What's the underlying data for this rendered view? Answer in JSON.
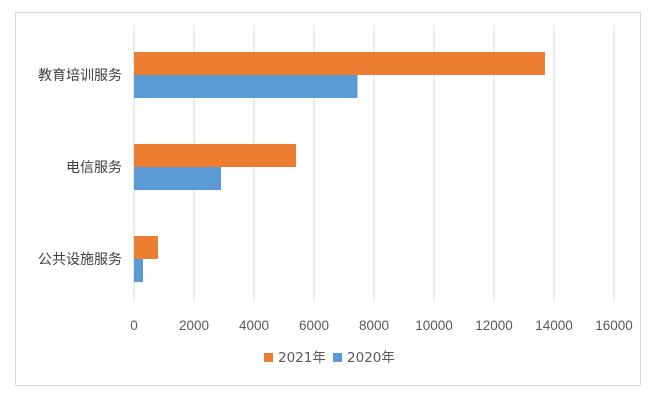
{
  "chart_data": {
    "type": "bar",
    "orientation": "horizontal",
    "categories": [
      "教育培训服务",
      "电信服务",
      "公共设施服务"
    ],
    "series": [
      {
        "name": "2021年",
        "color": "#ED7D31",
        "values": [
          13700,
          5400,
          800
        ]
      },
      {
        "name": "2020年",
        "color": "#5B9BD5",
        "values": [
          7450,
          2900,
          300
        ]
      }
    ],
    "xlim": [
      0,
      16000
    ],
    "xticks": [
      0,
      2000,
      4000,
      6000,
      8000,
      10000,
      12000,
      14000,
      16000
    ],
    "grid": true,
    "gridline_color": "#d9d9d9",
    "legend_position": "bottom",
    "title": "",
    "xlabel": "",
    "ylabel": ""
  }
}
